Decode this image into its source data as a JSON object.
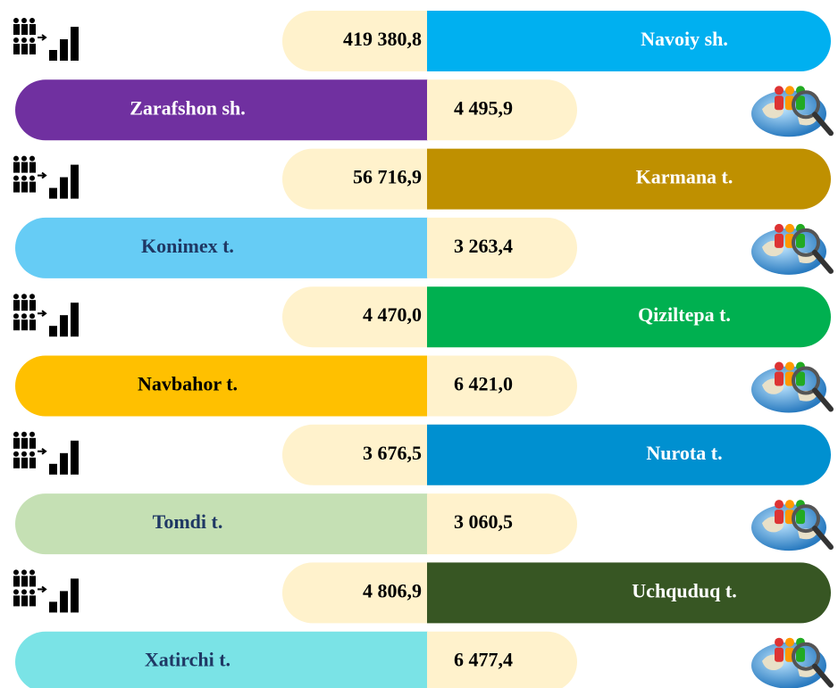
{
  "rows": [
    {
      "name": "Navoiy sh.",
      "value": "419 380,8",
      "color": "#00b0f0",
      "text_color": "#ffffff"
    },
    {
      "name": "Zarafshon sh.",
      "value": "4 495,9",
      "color": "#7030a0",
      "text_color": "#ffffff"
    },
    {
      "name": "Karmana t.",
      "value": "56 716,9",
      "color": "#bf9000",
      "text_color": "#ffffff"
    },
    {
      "name": "Konimex t.",
      "value": "3 263,4",
      "color": "#66ccf5",
      "text_color": "#1f3864"
    },
    {
      "name": "Qiziltepa t.",
      "value": "4 470,0",
      "color": "#00b050",
      "text_color": "#ffffff"
    },
    {
      "name": "Navbahor t.",
      "value": "6 421,0",
      "color": "#ffc000",
      "text_color": "#000000"
    },
    {
      "name": "Nurota t.",
      "value": "3 676,5",
      "color": "#0090d0",
      "text_color": "#ffffff"
    },
    {
      "name": "Tomdi t.",
      "value": "3 060,5",
      "color": "#c5e0b4",
      "text_color": "#1f3864"
    },
    {
      "name": "Uchquduq t.",
      "value": "4 806,9",
      "color": "#375623",
      "text_color": "#ffffff"
    },
    {
      "name": "Xatirchi t.",
      "value": "6 477,4",
      "color": "#7ae3e6",
      "text_color": "#1f3864"
    }
  ]
}
